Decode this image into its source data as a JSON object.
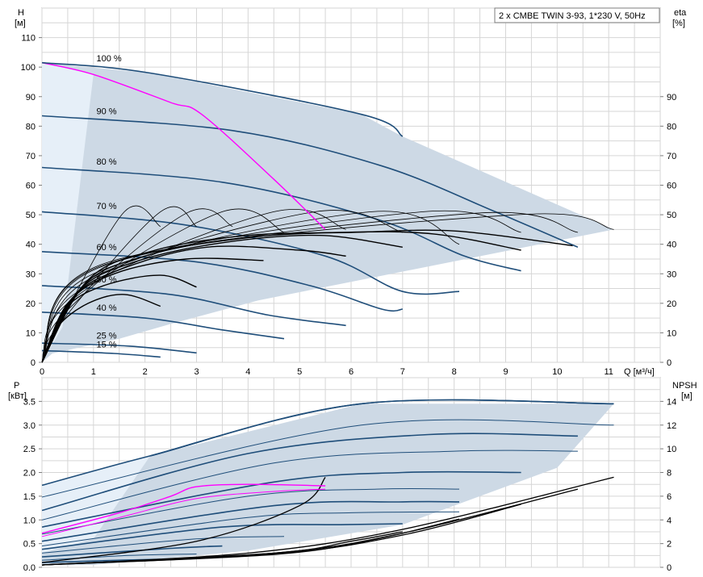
{
  "title": "2 x CMBE TWIN 3-93, 1*230 V, 50Hz",
  "colors": {
    "envelope": "#cdd9e5",
    "envelope_light": "#e6eff8",
    "speed_curve": "#1f4e7a",
    "efficiency_curve": "#000000",
    "operating_curve": "#ff00ff",
    "grid": "#d6d6d6"
  },
  "chart_data": [
    {
      "type": "line",
      "name": "head-chart",
      "ylabel_left": "H",
      "ylabel_left_unit": "[м]",
      "ylabel_right": "eta",
      "ylabel_right_unit": "[%]",
      "xlabel": "Q [м³/ч]",
      "xlim": [
        0,
        12
      ],
      "ylim": [
        0,
        120
      ],
      "x_ticks": [
        0,
        1,
        2,
        3,
        4,
        5,
        6,
        7,
        8,
        9,
        10,
        11
      ],
      "y_ticks": [
        0,
        10,
        20,
        30,
        40,
        50,
        60,
        70,
        80,
        90,
        100,
        110
      ],
      "y_ticks_right": [
        0,
        10,
        20,
        30,
        40,
        50,
        60,
        70,
        80,
        90
      ],
      "grid": true,
      "speed_labels": [
        {
          "text": "100 %",
          "x": 0.65,
          "y": 102
        },
        {
          "text": "90 %",
          "x": 0.65,
          "y": 84
        },
        {
          "text": "80 %",
          "x": 0.65,
          "y": 67
        },
        {
          "text": "70 %",
          "x": 0.65,
          "y": 52
        },
        {
          "text": "60 %",
          "x": 0.65,
          "y": 38
        },
        {
          "text": "50 %",
          "x": 0.65,
          "y": 27
        },
        {
          "text": "40 %",
          "x": 0.65,
          "y": 17.5
        },
        {
          "text": "25 %",
          "x": 0.65,
          "y": 8
        },
        {
          "text": "15 %",
          "x": 0.65,
          "y": 5
        }
      ],
      "envelope": [
        [
          0,
          101.5
        ],
        [
          2.1,
          98
        ],
        [
          6.2,
          84
        ],
        [
          7.0,
          76.5
        ],
        [
          11.1,
          45
        ],
        [
          4.2,
          21
        ],
        [
          2.5,
          13
        ],
        [
          1.5,
          8
        ],
        [
          0.2,
          3
        ],
        [
          0,
          0
        ]
      ],
      "envelope_light": [
        [
          0,
          101.5
        ],
        [
          1,
          97.5
        ],
        [
          0.4,
          12
        ],
        [
          0,
          0
        ]
      ],
      "speed_curves": [
        [
          [
            0,
            83.5
          ],
          [
            3.7,
            78.5
          ],
          [
            6.6,
            66.5
          ],
          [
            8.8,
            51
          ],
          [
            10.4,
            39
          ]
        ],
        [
          [
            0,
            66
          ],
          [
            3.5,
            61
          ],
          [
            6.5,
            48.5
          ],
          [
            8.2,
            36
          ],
          [
            9.3,
            31
          ]
        ],
        [
          [
            0,
            51
          ],
          [
            2.8,
            46.5
          ],
          [
            5.5,
            36
          ],
          [
            7.0,
            24
          ],
          [
            8.1,
            24
          ]
        ],
        [
          [
            0,
            37.5
          ],
          [
            3.0,
            34
          ],
          [
            5.2,
            26
          ],
          [
            6.6,
            18
          ],
          [
            7.0,
            18
          ]
        ],
        [
          [
            0,
            26
          ],
          [
            2.5,
            23
          ],
          [
            4.4,
            16
          ],
          [
            5.9,
            12.5
          ]
        ],
        [
          [
            0,
            17
          ],
          [
            2.0,
            15
          ],
          [
            3.5,
            11
          ],
          [
            4.7,
            8
          ]
        ],
        [
          [
            0,
            6.5
          ],
          [
            1.7,
            5.5
          ],
          [
            3.0,
            3.2
          ]
        ],
        [
          [
            0,
            4
          ],
          [
            1.4,
            3
          ],
          [
            2.3,
            1.8
          ]
        ]
      ],
      "efficiency_curves": [
        [
          [
            0,
            0
          ],
          [
            0.9,
            28
          ],
          [
            2.2,
            38
          ],
          [
            4.0,
            43
          ],
          [
            6.0,
            44
          ],
          [
            8.0,
            44.5
          ],
          [
            10.3,
            39.5
          ]
        ],
        [
          [
            0,
            0
          ],
          [
            0.8,
            26
          ],
          [
            2.0,
            36
          ],
          [
            3.8,
            42
          ],
          [
            5.8,
            44
          ],
          [
            7.6,
            43.5
          ],
          [
            9.3,
            38
          ]
        ],
        [
          [
            0,
            0
          ],
          [
            0.7,
            24
          ],
          [
            1.8,
            34
          ],
          [
            3.5,
            40.5
          ],
          [
            5.4,
            43
          ],
          [
            7.0,
            39
          ]
        ],
        [
          [
            0,
            0
          ],
          [
            0.6,
            22
          ],
          [
            1.6,
            32
          ],
          [
            3.2,
            39
          ],
          [
            5.0,
            38
          ],
          [
            5.9,
            36
          ]
        ],
        [
          [
            0,
            0
          ],
          [
            0.5,
            20
          ],
          [
            1.4,
            30
          ],
          [
            2.8,
            35
          ],
          [
            4.3,
            34.5
          ]
        ],
        [
          [
            0,
            0
          ],
          [
            0.45,
            18
          ],
          [
            1.2,
            26
          ],
          [
            2.3,
            29.5
          ],
          [
            3.0,
            25.5
          ]
        ],
        [
          [
            0,
            0
          ],
          [
            0.3,
            12
          ],
          [
            0.9,
            20
          ],
          [
            1.6,
            23
          ],
          [
            2.3,
            19
          ]
        ],
        [
          [
            0,
            0
          ],
          [
            0.2,
            8
          ],
          [
            1.6,
            51
          ],
          [
            2.3,
            46
          ]
        ],
        [
          [
            0,
            0
          ],
          [
            0.3,
            12
          ],
          [
            2.3,
            51
          ],
          [
            3.0,
            46
          ]
        ],
        [
          [
            0,
            0
          ],
          [
            0.4,
            16
          ],
          [
            2.8,
            50.5
          ],
          [
            3.7,
            46
          ]
        ],
        [
          [
            0,
            0
          ],
          [
            0.5,
            20
          ],
          [
            3.5,
            51
          ],
          [
            4.7,
            44
          ]
        ],
        [
          [
            0,
            0
          ],
          [
            0.7,
            24
          ],
          [
            4.5,
            51
          ],
          [
            5.9,
            45
          ]
        ],
        [
          [
            0,
            0
          ],
          [
            0.9,
            28
          ],
          [
            5.3,
            51
          ],
          [
            7.0,
            44
          ]
        ],
        [
          [
            0,
            0
          ],
          [
            1.0,
            30
          ],
          [
            6.4,
            51
          ],
          [
            8.1,
            40
          ]
        ],
        [
          [
            0,
            0
          ],
          [
            1.1,
            32
          ],
          [
            7.4,
            51
          ],
          [
            9.3,
            44
          ]
        ],
        [
          [
            0,
            0
          ],
          [
            1.2,
            33
          ],
          [
            8.4,
            50.5
          ],
          [
            10.4,
            44
          ]
        ],
        [
          [
            0,
            0
          ],
          [
            1.3,
            34
          ],
          [
            9.2,
            50
          ],
          [
            11.1,
            45
          ]
        ]
      ],
      "operating_curve": [
        [
          0,
          101.5
        ],
        [
          1,
          97.5
        ],
        [
          2.5,
          88
        ],
        [
          3.1,
          84
        ],
        [
          4.5,
          62
        ],
        [
          5.5,
          45
        ]
      ]
    },
    {
      "type": "line",
      "name": "power-chart",
      "ylabel_left": "P",
      "ylabel_left_unit": "[кВт]",
      "ylabel_right": "NPSH",
      "ylabel_right_unit": "[м]",
      "xlim": [
        0,
        12
      ],
      "ylim": [
        0,
        4
      ],
      "y_ticks": [
        0.0,
        0.5,
        1.0,
        1.5,
        2.0,
        2.5,
        3.0,
        3.5
      ],
      "y_tick_labels": [
        "0.0",
        "0.5",
        "1.0",
        "1.5",
        "2.0",
        "2.5",
        "3.0",
        "3.5"
      ],
      "y_ticks_right": [
        0,
        2,
        4,
        6,
        8,
        10,
        12,
        14
      ],
      "y_right_lim": [
        0,
        16
      ],
      "grid": true,
      "envelope": [
        [
          0,
          1.73
        ],
        [
          2.1,
          2.35
        ],
        [
          6.2,
          3.45
        ],
        [
          11.1,
          3.45
        ],
        [
          10.0,
          2.1
        ],
        [
          7.0,
          0.9
        ],
        [
          4.0,
          0.35
        ],
        [
          1.0,
          0.05
        ],
        [
          0,
          0.05
        ]
      ],
      "envelope_light": [
        [
          0,
          1.73
        ],
        [
          2.1,
          2.35
        ],
        [
          1.0,
          0.6
        ],
        [
          0,
          0.3
        ]
      ],
      "power_curves": [
        [
          [
            2.1,
            2.35
          ],
          [
            6.2,
            3.45
          ],
          [
            11.1,
            3.45
          ]
        ],
        [
          [
            0,
            1.48
          ],
          [
            6.2,
            3.0
          ],
          [
            11.1,
            3.0
          ]
        ],
        [
          [
            0,
            1.2
          ],
          [
            4.0,
            2.4
          ],
          [
            7.5,
            2.8
          ],
          [
            10.4,
            2.77
          ]
        ],
        [
          [
            0,
            1.0
          ],
          [
            4.5,
            2.2
          ],
          [
            8.0,
            2.45
          ],
          [
            10.4,
            2.45
          ]
        ],
        [
          [
            0,
            0.85
          ],
          [
            4.5,
            1.8
          ],
          [
            7.0,
            2.0
          ],
          [
            9.3,
            2.0
          ]
        ],
        [
          [
            0,
            0.7
          ],
          [
            4.0,
            1.5
          ],
          [
            6.5,
            1.65
          ],
          [
            8.1,
            1.65
          ]
        ],
        [
          [
            0,
            0.55
          ],
          [
            4.5,
            1.3
          ],
          [
            7.0,
            1.38
          ],
          [
            8.1,
            1.38
          ]
        ],
        [
          [
            0,
            0.45
          ],
          [
            4.0,
            1.05
          ],
          [
            6.0,
            1.15
          ],
          [
            8.1,
            1.17
          ]
        ],
        [
          [
            0,
            0.38
          ],
          [
            3.5,
            0.85
          ],
          [
            5.9,
            0.9
          ],
          [
            7.0,
            0.92
          ]
        ],
        [
          [
            0,
            0.3
          ],
          [
            3.0,
            0.6
          ],
          [
            4.7,
            0.65
          ]
        ],
        [
          [
            0,
            0.22
          ],
          [
            2.5,
            0.4
          ],
          [
            3.5,
            0.45
          ]
        ],
        [
          [
            0,
            0.15
          ],
          [
            1.7,
            0.25
          ],
          [
            3.0,
            0.28
          ]
        ],
        [
          [
            0,
            0.1
          ],
          [
            1.5,
            0.15
          ],
          [
            2.3,
            0.17
          ]
        ]
      ],
      "npsh_curves": [
        [
          [
            0,
            0.1
          ],
          [
            3.0,
            0.55
          ],
          [
            5.0,
            1.3
          ],
          [
            5.5,
            1.9
          ]
        ],
        [
          [
            0,
            0.05
          ],
          [
            4.0,
            0.3
          ],
          [
            7.0,
            0.8
          ],
          [
            11.1,
            1.9
          ]
        ],
        [
          [
            0,
            0.05
          ],
          [
            4.5,
            0.3
          ],
          [
            7.0,
            0.72
          ],
          [
            10.4,
            1.65
          ]
        ],
        [
          [
            0,
            0.05
          ],
          [
            4.5,
            0.28
          ],
          [
            7.0,
            0.68
          ],
          [
            9.3,
            1.33
          ]
        ],
        [
          [
            0,
            0.05
          ],
          [
            4.5,
            0.27
          ],
          [
            6.5,
            0.6
          ],
          [
            8.1,
            1.02
          ]
        ],
        [
          [
            0,
            0.05
          ],
          [
            4.5,
            0.3
          ],
          [
            6.0,
            0.55
          ],
          [
            7.0,
            0.75
          ]
        ]
      ],
      "operating_curve": [
        [
          0,
          0.72
        ],
        [
          1.5,
          1.15
        ],
        [
          2.5,
          1.5
        ],
        [
          3.0,
          1.7
        ],
        [
          4.0,
          1.75
        ],
        [
          5.5,
          1.72
        ]
      ],
      "operating_curve_2": [
        [
          0,
          0.65
        ],
        [
          1.5,
          1.05
        ],
        [
          3.0,
          1.45
        ],
        [
          4.5,
          1.6
        ],
        [
          5.5,
          1.65
        ]
      ]
    }
  ]
}
